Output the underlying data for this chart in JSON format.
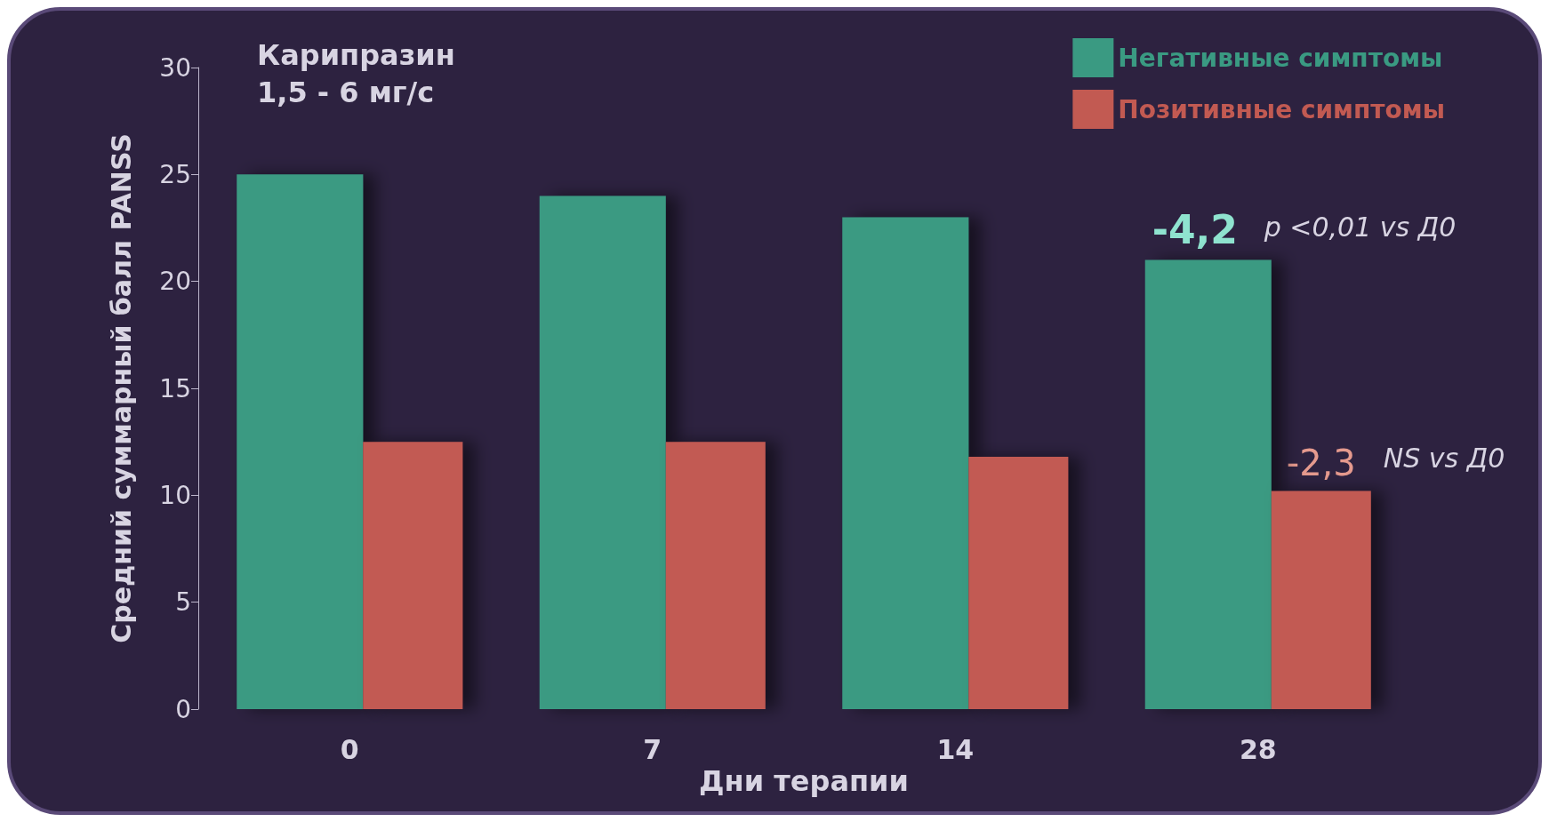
{
  "chart_data": {
    "type": "bar",
    "title": "Карипразин\n1,5 - 6 мг/с",
    "xlabel": "Дни терапии",
    "ylabel": "Средний суммарный балл PANSS",
    "categories": [
      "0",
      "7",
      "14",
      "28"
    ],
    "series": [
      {
        "name": "Негативные симптомы",
        "color": "#3a9a82",
        "values": [
          25,
          24,
          23,
          21
        ]
      },
      {
        "name": "Позитивные симптомы",
        "color": "#c25a52",
        "values": [
          12.5,
          12.5,
          11.8,
          10.2
        ]
      }
    ],
    "ylim": [
      0,
      30
    ],
    "yticks": [
      0,
      5,
      10,
      15,
      20,
      25,
      30
    ],
    "grid": false,
    "legend": "top right",
    "annotations": [
      {
        "text": "-4,2",
        "x": "28",
        "y": 21
      },
      "p <0,01 vs Д0",
      "-2,3",
      "NS vs Д0"
    ]
  }
}
